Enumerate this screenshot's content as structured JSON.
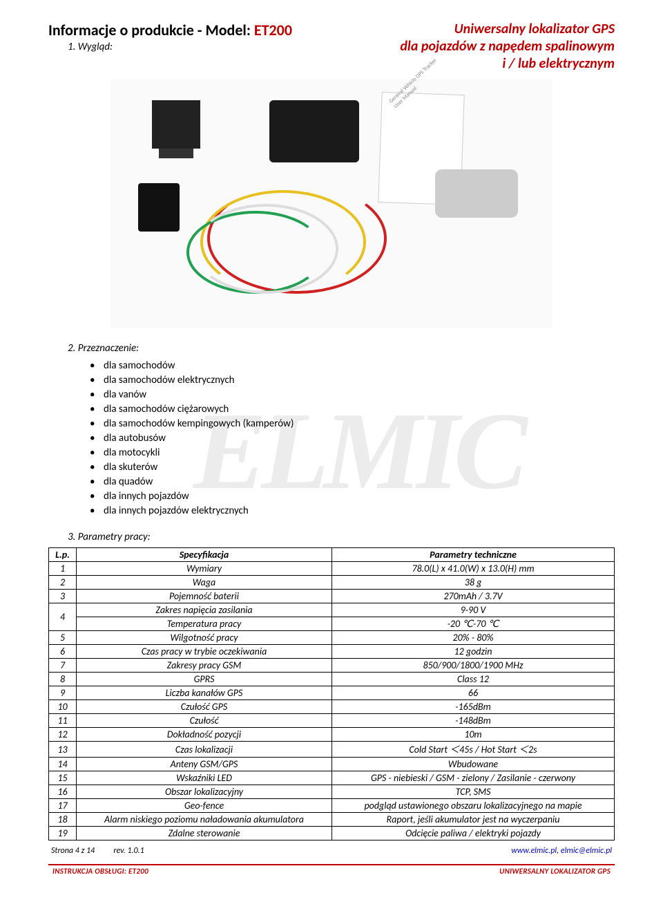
{
  "header": {
    "title_prefix": "Informacje o produkcie - Model: ",
    "model": "ET200",
    "subtitle_lines": [
      "Uniwersalny lokalizator GPS",
      "dla pojazdów z napędem spalinowym",
      "i / lub elektrycznym"
    ]
  },
  "sections": {
    "s1": "1.   Wygląd:",
    "s2": "2.   Przeznaczenie:",
    "s3": "3.   Parametry pracy:"
  },
  "purpose_list": [
    "dla samochodów",
    "dla samochodów elektrycznych",
    "dla vanów",
    "dla samochodów ciężarowych",
    "dla samochodów kempingowych (kamperów)",
    "dla autobusów",
    "dla motocykli",
    "dla skuterów",
    "dla quadów",
    "dla innych pojazdów",
    "dla innych pojazdów elektrycznych"
  ],
  "spec_table": {
    "head": {
      "lp": "L.p.",
      "spec": "Specyfikacja",
      "param": "Parametry techniczne"
    },
    "rows": [
      {
        "lp": "1",
        "spec": "Wymiary",
        "param": "78.0(L) x 41.0(W) x 13.0(H) mm"
      },
      {
        "lp": "2",
        "spec": "Waga",
        "param": "38 g"
      },
      {
        "lp": "3",
        "spec": "Pojemność baterii",
        "param": "270mAh / 3.7V"
      },
      {
        "lp": "",
        "spec": "Zakres napięcia zasilania",
        "param": "9-90 V",
        "rowspan_lp_start": true,
        "rowspan_lp_value": "4",
        "rowspan_lp_count": 2
      },
      {
        "lp": "",
        "spec": "Temperatura pracy",
        "param": "-20 ℃-70 ℃",
        "skip_lp": true
      },
      {
        "lp": "5",
        "spec": "Wilgotność pracy",
        "param": "20% - 80%"
      },
      {
        "lp": "6",
        "spec": "Czas pracy w trybie oczekiwania",
        "param": "12 godzin"
      },
      {
        "lp": "7",
        "spec": "Zakresy pracy GSM",
        "param": "850/900/1800/1900 MHz"
      },
      {
        "lp": "8",
        "spec": "GPRS",
        "param": "Class 12"
      },
      {
        "lp": "9",
        "spec": "Liczba kanałów GPS",
        "param": "66"
      },
      {
        "lp": "10",
        "spec": "Czułość GPS",
        "param": "-165dBm"
      },
      {
        "lp": "11",
        "spec": "Czułość",
        "param": "-148dBm"
      },
      {
        "lp": "12",
        "spec": "Dokładność pozycji",
        "param": "10m"
      },
      {
        "lp": "13",
        "spec": "Czas lokalizacji",
        "param": "Cold Start ＜45s / Hot Start ＜2s"
      },
      {
        "lp": "14",
        "spec": "Anteny GSM/GPS",
        "param": "Wbudowane"
      },
      {
        "lp": "15",
        "spec": "Wskaźniki LED",
        "param": "GPS - niebieski / GSM - zielony / Zasilanie - czerwony"
      },
      {
        "lp": "16",
        "spec": "Obszar lokalizacyjny",
        "param": "TCP, SMS"
      },
      {
        "lp": "17",
        "spec": "Geo-fence",
        "param": "podgląd ustawionego obszaru lokalizacyjnego na mapie"
      },
      {
        "lp": "18",
        "spec": "Alarm niskiego poziomu naładowania akumulatora",
        "param": "Raport, jeśli akumulator jest na wyczerpaniu"
      },
      {
        "lp": "19",
        "spec": "Zdalne sterowanie",
        "param": "Odcięcie paliwa / elektryki pojazdy"
      }
    ]
  },
  "footer": {
    "page": "Strona 4 z 14",
    "rev": "rev. 1.0.1",
    "site": "www.elmic.pl",
    "email": "elmic@elmic.pl",
    "bar_left": "INSTRUKCJA OBSŁUGI:    ET200",
    "bar_right": "UNIWERSALNY LOKALIZATOR GPS"
  },
  "watermark_text": "ELMIC",
  "colors": {
    "accent": "#c00000",
    "text": "#000000",
    "link": "#0000cc",
    "watermark": "rgba(200,200,200,0.35)"
  }
}
